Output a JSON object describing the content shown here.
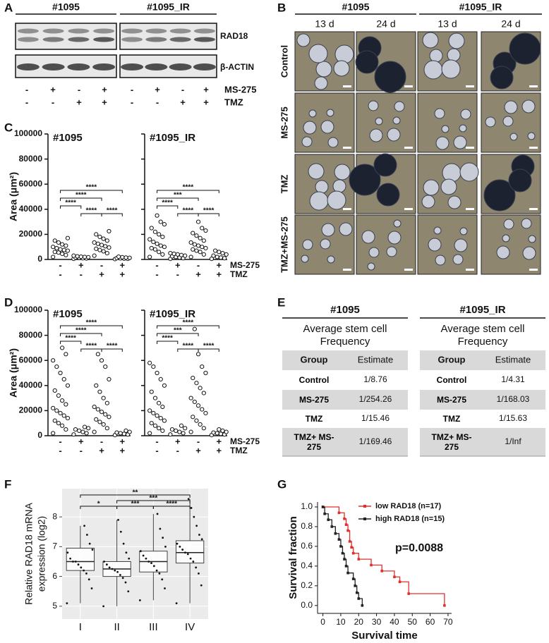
{
  "panel_labels": [
    "A",
    "B",
    "C",
    "D",
    "E",
    "F",
    "G"
  ],
  "blot": {
    "groups": [
      "#1095",
      "#1095_IR"
    ],
    "bands": [
      "RAD18",
      "β-ACTIN"
    ],
    "treatments": [
      {
        "name": "MS-275",
        "signs": [
          "-",
          "+",
          "-",
          "+",
          "-",
          "+",
          "-",
          "+"
        ]
      },
      {
        "name": "TMZ",
        "signs": [
          "-",
          "-",
          "+",
          "+",
          "-",
          "-",
          "+",
          "+"
        ]
      }
    ]
  },
  "images": {
    "groups": [
      "#1095",
      "#1095_IR"
    ],
    "timepoints": [
      "13 d",
      "24 d",
      "13 d",
      "24 d"
    ],
    "rows": [
      "Control",
      "MS-275",
      "TMZ",
      "TMZ+MS-275"
    ]
  },
  "chart_data": [
    {
      "type": "dot",
      "ylabel": "Area (μm²)",
      "ylim": [
        0,
        100000
      ],
      "yticks": [
        0,
        20000,
        40000,
        60000,
        80000,
        100000
      ],
      "treatments": [
        {
          "name": "MS-275",
          "signs": [
            "-",
            "+",
            "-",
            "+"
          ]
        },
        {
          "name": "TMZ",
          "signs": [
            "-",
            "-",
            "+",
            "+"
          ]
        }
      ],
      "subplots": [
        {
          "title": "#1095",
          "groups": [
            [
              2000,
              3500,
              4500,
              5500,
              6000,
              7000,
              7500,
              8000,
              9000,
              10000,
              11000,
              12000,
              13500,
              15000,
              17000
            ],
            [
              500,
              800,
              1000,
              1300,
              1500,
              1800,
              2000,
              2200,
              2500,
              3000
            ],
            [
              3000,
              5000,
              6500,
              7500,
              8500,
              9500,
              10500,
              11500,
              12500,
              13500,
              15000,
              16500,
              18000,
              20000,
              22500
            ],
            [
              300,
              500,
              700,
              900,
              1100,
              1300,
              1500,
              1800,
              2200
            ]
          ],
          "brackets": [
            {
              "from": 0,
              "to": 3,
              "label": "****"
            },
            {
              "from": 0,
              "to": 2,
              "label": "****"
            },
            {
              "from": 0,
              "to": 1,
              "label": "****"
            },
            {
              "from": 1,
              "to": 2,
              "label": "****"
            },
            {
              "from": 2,
              "to": 3,
              "label": "****"
            }
          ]
        },
        {
          "title": "#1095_IR",
          "groups": [
            [
              2000,
              4000,
              6000,
              8000,
              9000,
              10000,
              11000,
              12500,
              14000,
              16000,
              18000,
              20000,
              22000,
              25000,
              28000,
              30000,
              35000
            ],
            [
              500,
              1000,
              1500,
              2000,
              2500,
              3000,
              3500,
              4000,
              4500,
              5000
            ],
            [
              2000,
              4000,
              6000,
              7000,
              8000,
              9000,
              10000,
              11000,
              12000,
              13500,
              15000,
              17000,
              19000,
              21000,
              23000,
              25000,
              30000
            ],
            [
              500,
              1000,
              1500,
              2000,
              3000,
              4000,
              5000,
              6000,
              7000
            ]
          ],
          "brackets": [
            {
              "from": 0,
              "to": 3,
              "label": "****"
            },
            {
              "from": 0,
              "to": 2,
              "label": "***"
            },
            {
              "from": 0,
              "to": 1,
              "label": "****"
            },
            {
              "from": 1,
              "to": 2,
              "label": "****"
            },
            {
              "from": 2,
              "to": 3,
              "label": "****"
            }
          ]
        }
      ]
    },
    {
      "type": "dot",
      "ylabel": "Area (μm²)",
      "ylim": [
        0,
        100000
      ],
      "yticks": [
        0,
        20000,
        40000,
        60000,
        80000,
        100000
      ],
      "treatments": [
        {
          "name": "MS-275",
          "signs": [
            "-",
            "+",
            "-",
            "+"
          ]
        },
        {
          "name": "TMZ",
          "signs": [
            "-",
            "-",
            "+",
            "+"
          ]
        }
      ],
      "subplots": [
        {
          "title": "#1095",
          "groups": [
            [
              2000,
              5000,
              8000,
              10000,
              12000,
              14000,
              16000,
              18000,
              20000,
              22000,
              25000,
              28000,
              32000,
              36000,
              40000,
              45000,
              50000,
              55000,
              60000,
              65000,
              70000
            ],
            [
              1000,
              2000,
              3000,
              4000,
              5000,
              6000,
              7000
            ],
            [
              3000,
              6000,
              9000,
              11000,
              13000,
              15000,
              17000,
              19000,
              21000,
              23000,
              26000,
              30000,
              35000,
              40000,
              45000,
              55000,
              60000,
              65000
            ],
            [
              500,
              1000,
              1500,
              2000,
              2500,
              3000,
              4000
            ]
          ],
          "brackets": [
            {
              "from": 0,
              "to": 3,
              "label": "****"
            },
            {
              "from": 0,
              "to": 2,
              "label": "****"
            },
            {
              "from": 0,
              "to": 1,
              "label": "****"
            },
            {
              "from": 1,
              "to": 2,
              "label": "****"
            },
            {
              "from": 2,
              "to": 3,
              "label": "****"
            }
          ]
        },
        {
          "title": "#1095_IR",
          "groups": [
            [
              2000,
              4000,
              6000,
              8000,
              10000,
              12000,
              14000,
              16000,
              18000,
              20000,
              23000,
              26000,
              30000,
              35000,
              40000,
              45000,
              50000,
              55000,
              58000
            ],
            [
              1000,
              2000,
              3000,
              4000,
              5000,
              6000,
              8000
            ],
            [
              3000,
              6000,
              9000,
              12000,
              15000,
              18000,
              21000,
              24000,
              27000,
              30000,
              34000,
              38000,
              42000,
              46000,
              50000,
              55000,
              65000,
              85000
            ],
            [
              500,
              1000,
              1500,
              2000,
              2500,
              3000,
              4000,
              5000
            ]
          ],
          "brackets": [
            {
              "from": 0,
              "to": 3,
              "label": "****"
            },
            {
              "from": 0,
              "to": 2,
              "label": "***"
            },
            {
              "from": 0,
              "to": 1,
              "label": "****"
            },
            {
              "from": 1,
              "to": 2,
              "label": "****"
            },
            {
              "from": 2,
              "to": 3,
              "label": "****"
            }
          ]
        }
      ]
    },
    {
      "type": "box",
      "ylabel": [
        "Relative RAD18 mRNA",
        "expression (log2)"
      ],
      "categories": [
        "I",
        "II",
        "III",
        "IV"
      ],
      "ylim": [
        4.57,
        8.95
      ],
      "yticks": [
        5,
        6,
        7,
        8
      ],
      "grid": true,
      "boxes": [
        {
          "whislo": 5.1,
          "q1": 6.2,
          "med": 6.5,
          "q3": 6.95,
          "whishi": 7.7
        },
        {
          "whislo": 5.0,
          "q1": 6.0,
          "med": 6.25,
          "q3": 6.5,
          "whishi": 7.9
        },
        {
          "whislo": 5.2,
          "q1": 6.15,
          "med": 6.5,
          "q3": 6.85,
          "whishi": 8.1
        },
        {
          "whislo": 5.1,
          "q1": 6.45,
          "med": 6.8,
          "q3": 7.2,
          "whishi": 8.6
        }
      ],
      "points": [
        [
          5.1,
          5.6,
          5.9,
          6.1,
          6.2,
          6.3,
          6.4,
          6.5,
          6.5,
          6.6,
          6.8,
          6.9,
          7.1,
          7.4,
          7.7
        ],
        [
          5.0,
          5.5,
          5.8,
          5.95,
          6.05,
          6.15,
          6.2,
          6.25,
          6.3,
          6.4,
          6.5,
          6.6,
          6.8,
          7.1,
          7.5,
          7.9
        ],
        [
          5.2,
          5.6,
          5.9,
          6.1,
          6.2,
          6.35,
          6.45,
          6.5,
          6.6,
          6.7,
          6.85,
          7.0,
          7.3,
          7.6,
          8.1
        ],
        [
          5.1,
          5.7,
          6.1,
          6.3,
          6.5,
          6.6,
          6.75,
          6.8,
          6.9,
          7.0,
          7.1,
          7.25,
          7.4,
          7.7,
          8.0,
          8.3,
          8.6
        ]
      ],
      "brackets": [
        {
          "from": 0,
          "to": 3,
          "label": "**"
        },
        {
          "from": 1,
          "to": 3,
          "label": "***"
        },
        {
          "from": 0,
          "to": 1,
          "label": "*"
        },
        {
          "from": 1,
          "to": 2,
          "label": "***"
        },
        {
          "from": 2,
          "to": 3,
          "label": "****"
        }
      ]
    },
    {
      "type": "survival",
      "xlabel": "Survival  time",
      "ylabel": "Survival fraction",
      "annotation": "p=0.0088",
      "legend": "top-right",
      "xlim": [
        -3,
        72
      ],
      "ylim": [
        -0.08,
        1.05
      ],
      "xticks": [
        0,
        10,
        20,
        30,
        40,
        50,
        60,
        70
      ],
      "yticks": [
        {
          "value": 0,
          "label": "0.0"
        },
        {
          "value": 0.2,
          "label": "0.2"
        },
        {
          "value": 0.4,
          "label": "0.4"
        },
        {
          "value": 0.6,
          "label": "0.6"
        },
        {
          "value": 0.8,
          "label": "0.8"
        },
        {
          "value": 1,
          "label": "1.0"
        }
      ],
      "series": [
        {
          "name": "low RAD18 (n=17)",
          "color": "#e0302c",
          "x": [
            0,
            9,
            12,
            13,
            14,
            15,
            16,
            17,
            20,
            27,
            33,
            40,
            43,
            48,
            68
          ],
          "y": [
            1,
            0.94,
            0.88,
            0.82,
            0.76,
            0.65,
            0.59,
            0.53,
            0.47,
            0.41,
            0.35,
            0.29,
            0.24,
            0.12,
            0
          ]
        },
        {
          "name": "high RAD18 (n=15)",
          "color": "#222222",
          "x": [
            0,
            1,
            3,
            5,
            7,
            9,
            10,
            11,
            12,
            13,
            14,
            17,
            18,
            19,
            20,
            22
          ],
          "y": [
            1,
            0.93,
            0.87,
            0.8,
            0.73,
            0.67,
            0.6,
            0.53,
            0.47,
            0.4,
            0.33,
            0.27,
            0.2,
            0.13,
            0.07,
            0
          ]
        }
      ]
    }
  ],
  "table": {
    "panels": [
      {
        "title": "#1095",
        "subtitle": [
          "Average stem cell",
          "Frequency"
        ],
        "columns": [
          "Group",
          "Estimate"
        ],
        "rows": [
          [
            "Control",
            "1/8.76"
          ],
          [
            "MS-275",
            "1/254.26"
          ],
          [
            "TMZ",
            "1/15.46"
          ],
          [
            "TMZ+ MS-275",
            "1/169.46"
          ]
        ]
      },
      {
        "title": "#1095_IR",
        "subtitle": [
          "Average stem cell",
          "Frequency"
        ],
        "columns": [
          "Group",
          "Estimate"
        ],
        "rows": [
          [
            "Control",
            "1/4.31"
          ],
          [
            "MS-275",
            "1/168.03"
          ],
          [
            "TMZ",
            "1/15.63"
          ],
          [
            "TMZ+ MS-275",
            "1/Inf"
          ]
        ]
      }
    ]
  }
}
